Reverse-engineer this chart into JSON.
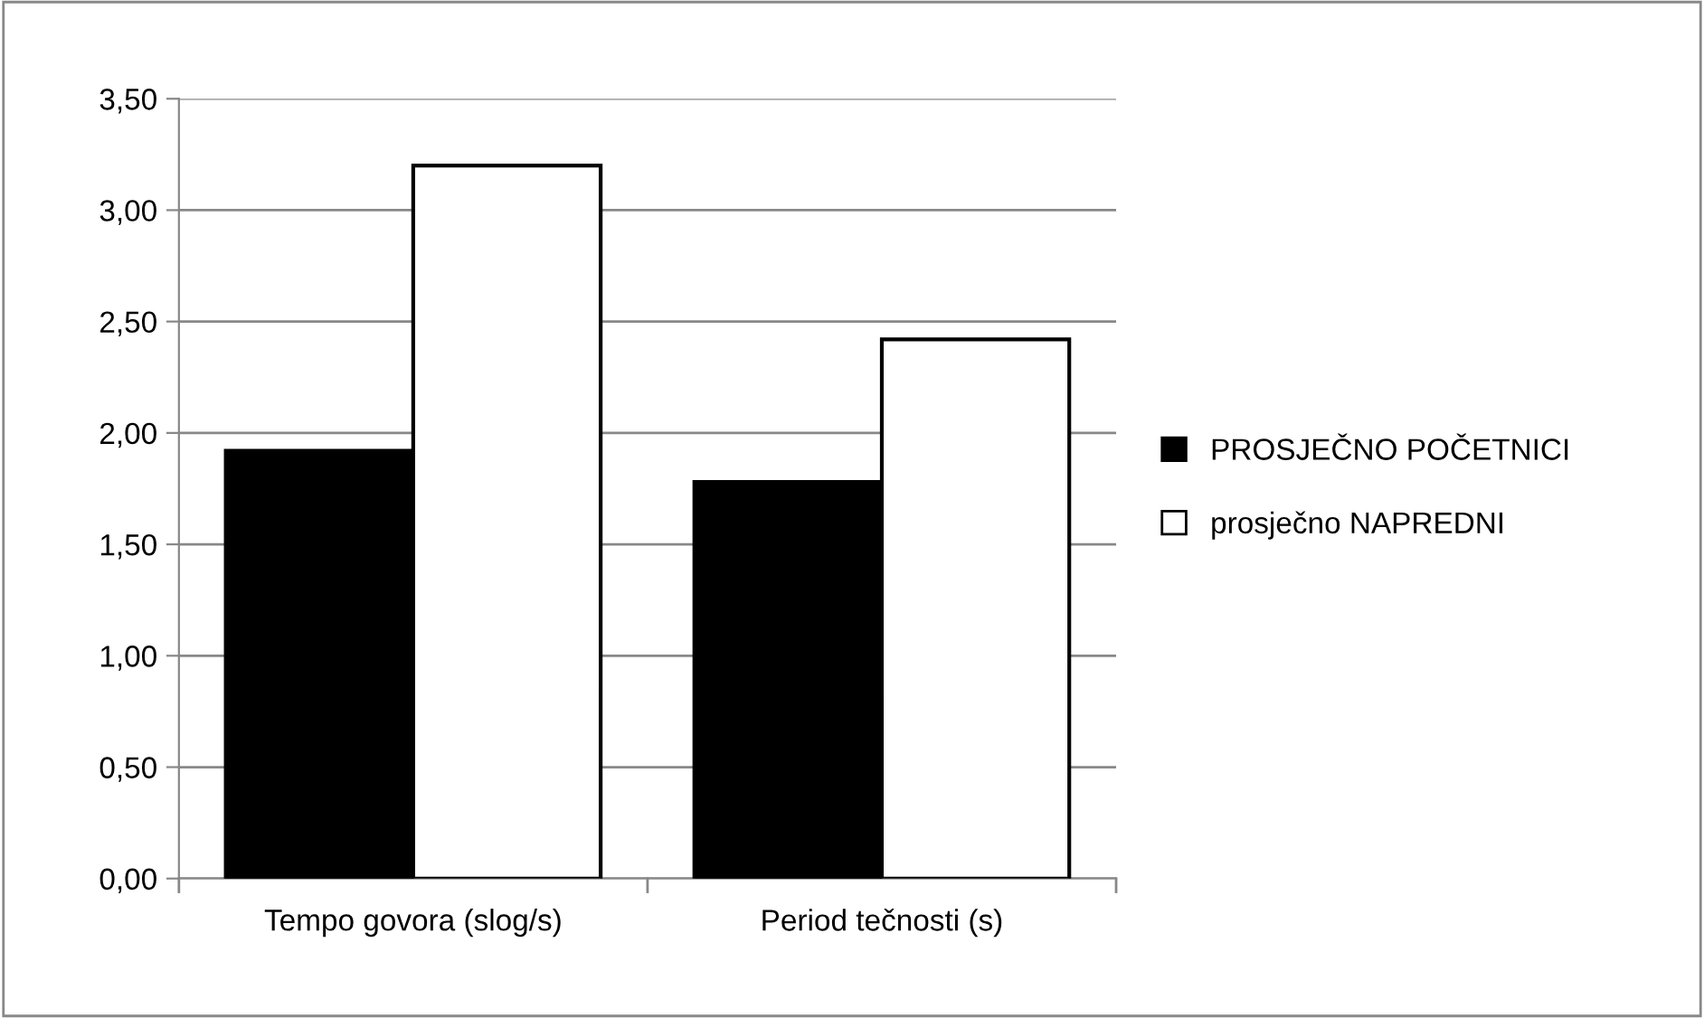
{
  "chart_data": {
    "type": "bar",
    "categories": [
      "Tempo govora (slog/s)",
      "Period tečnosti (s)"
    ],
    "series": [
      {
        "name": "PROSJEČNO POČETNICI",
        "color": "#000000",
        "values": [
          1.92,
          1.78
        ]
      },
      {
        "name": "prosječno NAPREDNI",
        "color": "#ffffff",
        "values": [
          3.2,
          2.42
        ]
      }
    ],
    "ylim": [
      0,
      3.5
    ],
    "yticks": [
      {
        "value": 0,
        "label": "0,00"
      },
      {
        "value": 0.5,
        "label": "0,50"
      },
      {
        "value": 1,
        "label": "1,00"
      },
      {
        "value": 1.5,
        "label": "1,50"
      },
      {
        "value": 2,
        "label": "2,00"
      },
      {
        "value": 2.5,
        "label": "2,50"
      },
      {
        "value": 3,
        "label": "3,00"
      },
      {
        "value": 3.5,
        "label": "3,50"
      }
    ],
    "grid": "y",
    "legend": "right"
  }
}
